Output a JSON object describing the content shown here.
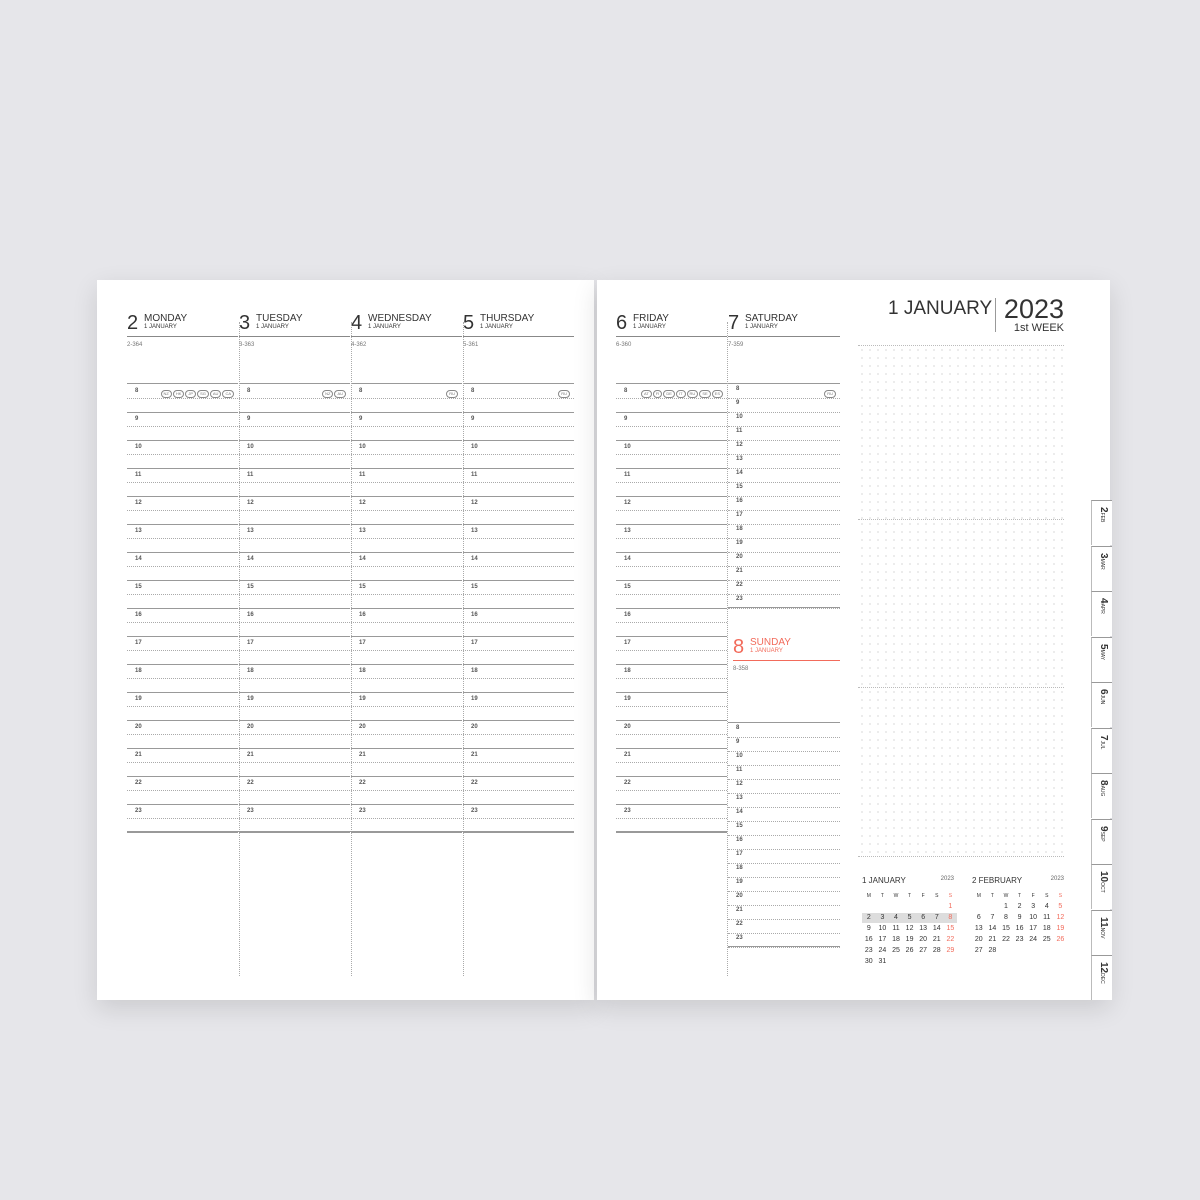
{
  "left_days": [
    {
      "num": "2",
      "name": "MONDAY",
      "month": "1 JANUARY",
      "count": "2-364",
      "badges": [
        "NZ",
        "HK",
        "JP",
        "SG",
        "AU",
        "CA"
      ]
    },
    {
      "num": "3",
      "name": "TUESDAY",
      "month": "1 JANUARY",
      "count": "3-363",
      "badges": [
        "NZ",
        "AU"
      ]
    },
    {
      "num": "4",
      "name": "WEDNESDAY",
      "month": "1 JANUARY",
      "count": "4-362",
      "badges": [
        "RU"
      ]
    },
    {
      "num": "5",
      "name": "THURSDAY",
      "month": "1 JANUARY",
      "count": "5-361",
      "badges": [
        "RU"
      ]
    }
  ],
  "friday": {
    "num": "6",
    "name": "FRIDAY",
    "month": "1 JANUARY",
    "count": "6-360",
    "badges": [
      "AT",
      "FI",
      "DE",
      "IT",
      "RU",
      "SE",
      "ES"
    ]
  },
  "saturday": {
    "num": "7",
    "name": "SATURDAY",
    "month": "1 JANUARY",
    "count": "7-359",
    "badges": [
      "RU"
    ]
  },
  "sunday": {
    "num": "8",
    "name": "SUNDAY",
    "month": "1 JANUARY",
    "count": "8-358"
  },
  "hours": [
    "8",
    "9",
    "10",
    "11",
    "12",
    "13",
    "14",
    "15",
    "16",
    "17",
    "18",
    "19",
    "20",
    "21",
    "22",
    "23"
  ],
  "week_header": {
    "month": "1 JANUARY",
    "year": "2023",
    "week": "1st WEEK"
  },
  "calendars": [
    {
      "title": "1 JANUARY",
      "year": "2023",
      "weekdays": [
        "M",
        "T",
        "W",
        "T",
        "F",
        "S",
        "S"
      ],
      "offset": 6,
      "days": 31,
      "highlight_week": [
        2,
        3,
        4,
        5,
        6,
        7,
        8
      ]
    },
    {
      "title": "2 FEBRUARY",
      "year": "2023",
      "weekdays": [
        "M",
        "T",
        "W",
        "T",
        "F",
        "S",
        "S"
      ],
      "offset": 2,
      "days": 28,
      "highlight_week": []
    }
  ],
  "tabs": [
    {
      "n": "2",
      "m": "FEB"
    },
    {
      "n": "3",
      "m": "MAR"
    },
    {
      "n": "4",
      "m": "APR"
    },
    {
      "n": "5",
      "m": "MAY"
    },
    {
      "n": "6",
      "m": "JUN"
    },
    {
      "n": "7",
      "m": "JUL"
    },
    {
      "n": "8",
      "m": "AUG"
    },
    {
      "n": "9",
      "m": "SEP"
    },
    {
      "n": "10",
      "m": "OCT"
    },
    {
      "n": "11",
      "m": "NOV"
    },
    {
      "n": "12",
      "m": "DEC"
    }
  ],
  "colors": {
    "sunday": "#f26b5b",
    "background": "#e6e6ea"
  }
}
